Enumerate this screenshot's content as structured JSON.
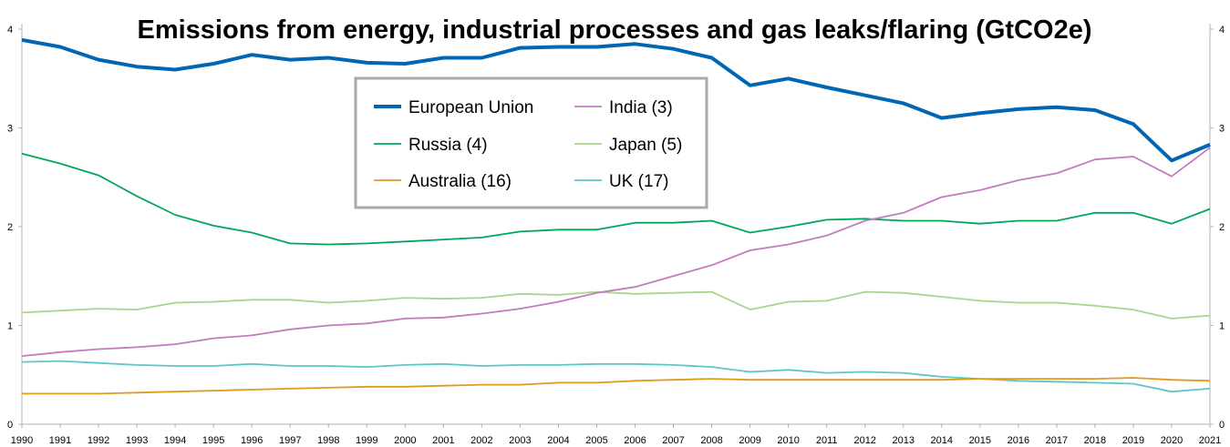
{
  "chart_data": {
    "type": "line",
    "title": "Emissions from energy, industrial processes and gas leaks/flaring (GtCO2e)",
    "xlabel": "",
    "ylabel": "",
    "ylim": [
      0,
      4
    ],
    "yticks": [
      "0",
      "1",
      "2",
      "3",
      "4"
    ],
    "grid": false,
    "legend_position": "top-center",
    "x": [
      "1990",
      "1991",
      "1992",
      "1993",
      "1994",
      "1995",
      "1996",
      "1997",
      "1998",
      "1999",
      "2000",
      "2001",
      "2002",
      "2003",
      "2004",
      "2005",
      "2006",
      "2007",
      "2008",
      "2009",
      "2010",
      "2011",
      "2012",
      "2013",
      "2014",
      "2015",
      "2016",
      "2017",
      "2018",
      "2019",
      "2020",
      "2021"
    ],
    "series": [
      {
        "name": "European Union",
        "color": "#0066b3",
        "width": 4,
        "values": [
          3.89,
          3.82,
          3.69,
          3.62,
          3.59,
          3.65,
          3.74,
          3.69,
          3.71,
          3.66,
          3.65,
          3.71,
          3.71,
          3.81,
          3.82,
          3.82,
          3.85,
          3.8,
          3.71,
          3.43,
          3.5,
          3.41,
          3.33,
          3.25,
          3.1,
          3.15,
          3.19,
          3.21,
          3.18,
          3.04,
          2.67,
          2.83
        ]
      },
      {
        "name": "India (3)",
        "color": "#c27bc0",
        "width": 1.8,
        "values": [
          0.69,
          0.73,
          0.76,
          0.78,
          0.81,
          0.87,
          0.9,
          0.96,
          1.0,
          1.02,
          1.07,
          1.08,
          1.12,
          1.17,
          1.24,
          1.33,
          1.39,
          1.5,
          1.61,
          1.76,
          1.82,
          1.91,
          2.06,
          2.14,
          2.3,
          2.37,
          2.47,
          2.54,
          2.68,
          2.71,
          2.51,
          2.8
        ]
      },
      {
        "name": "Russia (4)",
        "color": "#00a65a",
        "width": 1.8,
        "values": [
          2.74,
          2.64,
          2.52,
          2.31,
          2.12,
          2.01,
          1.94,
          1.83,
          1.82,
          1.83,
          1.85,
          1.87,
          1.89,
          1.95,
          1.97,
          1.97,
          2.04,
          2.04,
          2.06,
          1.94,
          2.0,
          2.07,
          2.08,
          2.06,
          2.06,
          2.03,
          2.06,
          2.06,
          2.14,
          2.14,
          2.03,
          2.18
        ]
      },
      {
        "name": "Japan (5)",
        "color": "#a9d58c",
        "width": 1.8,
        "values": [
          1.13,
          1.15,
          1.17,
          1.16,
          1.23,
          1.24,
          1.26,
          1.26,
          1.23,
          1.25,
          1.28,
          1.27,
          1.28,
          1.32,
          1.31,
          1.34,
          1.32,
          1.33,
          1.34,
          1.16,
          1.24,
          1.25,
          1.34,
          1.33,
          1.29,
          1.25,
          1.23,
          1.23,
          1.2,
          1.16,
          1.07,
          1.1
        ]
      },
      {
        "name": "Australia (16)",
        "color": "#e09a1e",
        "width": 1.8,
        "values": [
          0.31,
          0.31,
          0.31,
          0.32,
          0.33,
          0.34,
          0.35,
          0.36,
          0.37,
          0.38,
          0.38,
          0.39,
          0.4,
          0.4,
          0.42,
          0.42,
          0.44,
          0.45,
          0.46,
          0.45,
          0.45,
          0.45,
          0.45,
          0.45,
          0.45,
          0.46,
          0.46,
          0.46,
          0.46,
          0.47,
          0.45,
          0.44
        ]
      },
      {
        "name": "UK (17)",
        "color": "#5cc6c8",
        "width": 1.8,
        "values": [
          0.63,
          0.64,
          0.62,
          0.6,
          0.59,
          0.59,
          0.61,
          0.59,
          0.59,
          0.58,
          0.6,
          0.61,
          0.59,
          0.6,
          0.6,
          0.61,
          0.61,
          0.6,
          0.58,
          0.53,
          0.55,
          0.52,
          0.53,
          0.52,
          0.48,
          0.46,
          0.44,
          0.43,
          0.42,
          0.41,
          0.33,
          0.36
        ]
      }
    ],
    "legend_order": [
      0,
      1,
      2,
      3,
      4,
      5
    ]
  }
}
